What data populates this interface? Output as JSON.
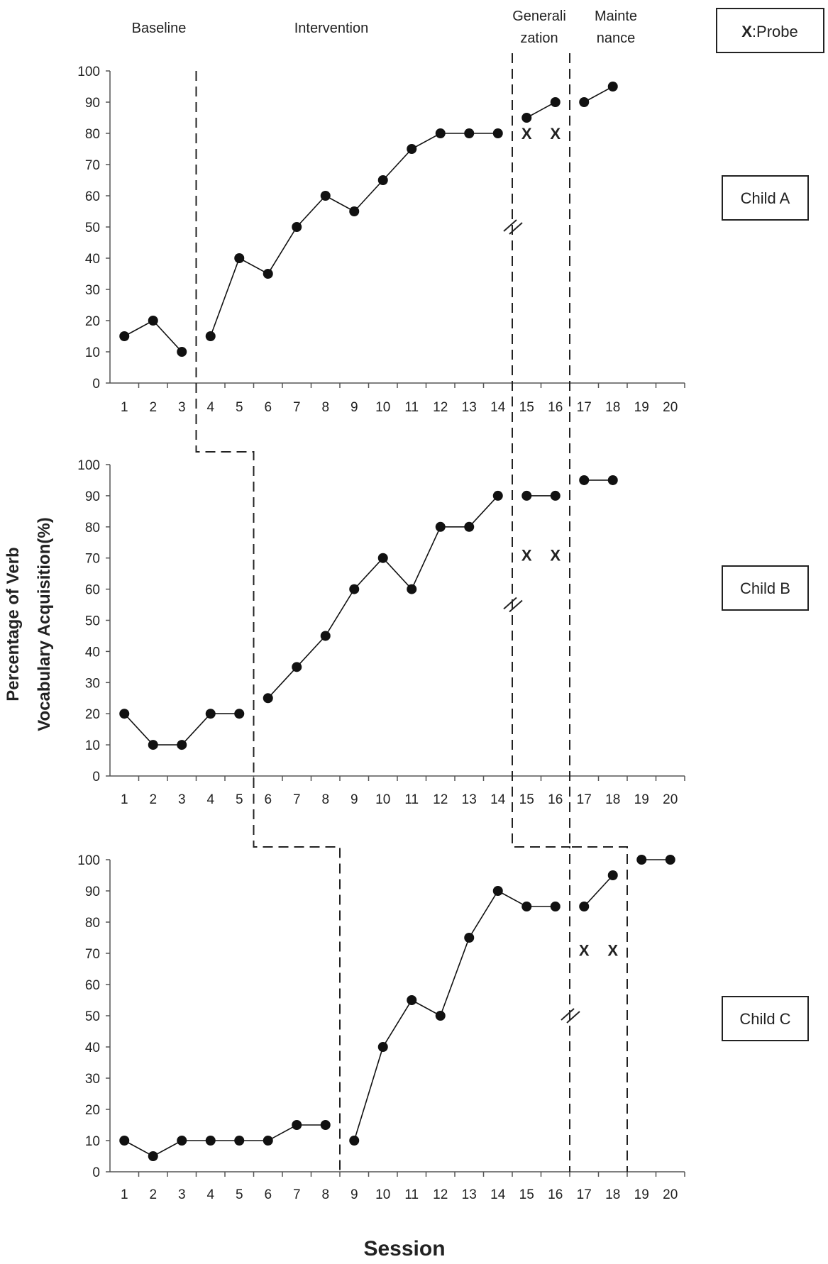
{
  "phases": {
    "baseline": "Baseline",
    "intervention": "Intervention",
    "generalization": [
      "Generali",
      "zation"
    ],
    "maintenance": [
      "Mainte",
      "nance"
    ]
  },
  "legend": {
    "marker": "X",
    "label": ":Probe"
  },
  "y_title": [
    "Percentage of Verb",
    "Vocabulary Acquisition(%)"
  ],
  "x_title": "Session",
  "chart_data": [
    {
      "type": "line",
      "label": "Child A",
      "x_ticks": [
        1,
        2,
        3,
        4,
        5,
        6,
        7,
        8,
        9,
        10,
        11,
        12,
        13,
        14,
        15,
        16,
        17,
        18,
        19,
        20
      ],
      "y_ticks": [
        0,
        10,
        20,
        30,
        40,
        50,
        60,
        70,
        80,
        90,
        100
      ],
      "ylim": [
        0,
        100
      ],
      "segments": [
        {
          "phase": "Baseline",
          "x": [
            1,
            2,
            3
          ],
          "y": [
            15,
            20,
            10
          ]
        },
        {
          "phase": "Intervention",
          "x": [
            4,
            5,
            6,
            7,
            8,
            9,
            10,
            11,
            12,
            13,
            14
          ],
          "y": [
            15,
            40,
            35,
            50,
            60,
            55,
            65,
            75,
            80,
            80,
            80
          ]
        },
        {
          "phase": "Generalization",
          "x": [
            15,
            16
          ],
          "y": [
            85,
            90
          ]
        },
        {
          "phase": "Maintenance",
          "x": [
            17,
            18
          ],
          "y": [
            90,
            95
          ]
        }
      ],
      "probes": [
        {
          "x": 15,
          "y": 80
        },
        {
          "x": 16,
          "y": 80
        }
      ],
      "phase_lines": [
        {
          "after": 3,
          "style": "dashed"
        },
        {
          "after": 14,
          "style": "dashed",
          "break_at": 50
        },
        {
          "after": 16,
          "style": "dashed"
        }
      ]
    },
    {
      "type": "line",
      "label": "Child B",
      "x_ticks": [
        1,
        2,
        3,
        4,
        5,
        6,
        7,
        8,
        9,
        10,
        11,
        12,
        13,
        14,
        15,
        16,
        17,
        18,
        19,
        20
      ],
      "y_ticks": [
        0,
        10,
        20,
        30,
        40,
        50,
        60,
        70,
        80,
        90,
        100
      ],
      "ylim": [
        0,
        100
      ],
      "segments": [
        {
          "phase": "Baseline",
          "x": [
            1,
            2,
            3,
            4,
            5
          ],
          "y": [
            20,
            10,
            10,
            20,
            20
          ]
        },
        {
          "phase": "Intervention",
          "x": [
            6,
            7,
            8,
            9,
            10,
            11,
            12,
            13,
            14
          ],
          "y": [
            25,
            35,
            45,
            60,
            70,
            60,
            80,
            80,
            90
          ]
        },
        {
          "phase": "Generalization",
          "x": [
            15,
            16
          ],
          "y": [
            90,
            90
          ]
        },
        {
          "phase": "Maintenance",
          "x": [
            17,
            18
          ],
          "y": [
            95,
            95
          ]
        }
      ],
      "probes": [
        {
          "x": 15,
          "y": 71
        },
        {
          "x": 16,
          "y": 71
        }
      ],
      "phase_lines": [
        {
          "after": 5,
          "style": "dashed"
        },
        {
          "after": 14,
          "style": "dashed",
          "break_at": 55
        },
        {
          "after": 16,
          "style": "dashed"
        }
      ]
    },
    {
      "type": "line",
      "label": "Child C",
      "x_ticks": [
        1,
        2,
        3,
        4,
        5,
        6,
        7,
        8,
        9,
        10,
        11,
        12,
        13,
        14,
        15,
        16,
        17,
        18,
        19,
        20
      ],
      "y_ticks": [
        0,
        10,
        20,
        30,
        40,
        50,
        60,
        70,
        80,
        90,
        100
      ],
      "ylim": [
        0,
        100
      ],
      "segments": [
        {
          "phase": "Baseline",
          "x": [
            1,
            2,
            3,
            4,
            5,
            6,
            7,
            8
          ],
          "y": [
            10,
            5,
            10,
            10,
            10,
            10,
            15,
            15
          ]
        },
        {
          "phase": "Intervention",
          "x": [
            9,
            10,
            11,
            12,
            13,
            14,
            15,
            16
          ],
          "y": [
            10,
            40,
            55,
            50,
            75,
            90,
            85,
            85
          ]
        },
        {
          "phase": "Generalization",
          "x": [
            17,
            18
          ],
          "y": [
            85,
            95
          ]
        },
        {
          "phase": "Maintenance",
          "x": [
            19,
            20
          ],
          "y": [
            100,
            100
          ]
        }
      ],
      "probes": [
        {
          "x": 17,
          "y": 71
        },
        {
          "x": 18,
          "y": 71
        }
      ],
      "phase_lines": [
        {
          "after": 8,
          "style": "dashed"
        },
        {
          "after": 16,
          "style": "dashed",
          "break_at": 50
        },
        {
          "after": 18,
          "style": "dashed"
        }
      ]
    }
  ]
}
